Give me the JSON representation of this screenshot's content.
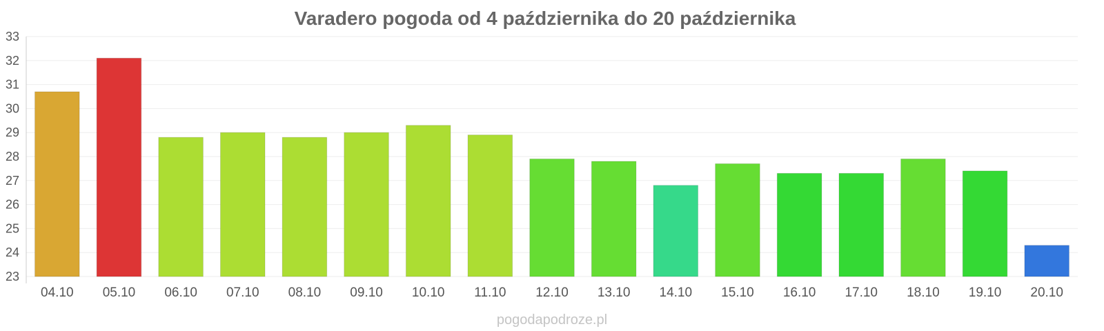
{
  "chart_data": {
    "type": "bar",
    "title": "Varadero pogoda od 4 października do 20 października",
    "xlabel": "",
    "ylabel": "",
    "ylim": [
      23,
      33
    ],
    "yticks": [
      "23",
      "24",
      "25",
      "26",
      "27",
      "28",
      "29",
      "30",
      "31",
      "32",
      "33"
    ],
    "grid": true,
    "categories": [
      "04.10",
      "05.10",
      "06.10",
      "07.10",
      "08.10",
      "09.10",
      "10.10",
      "11.10",
      "12.10",
      "13.10",
      "14.10",
      "15.10",
      "16.10",
      "17.10",
      "18.10",
      "19.10",
      "20.10"
    ],
    "values": [
      30.7,
      32.1,
      28.8,
      29.0,
      28.8,
      29.0,
      29.3,
      28.9,
      27.9,
      27.8,
      26.8,
      27.7,
      27.3,
      27.3,
      27.9,
      27.4,
      24.3
    ],
    "colors": [
      "#d9a733",
      "#dd3535",
      "#acdd33",
      "#acdd33",
      "#acdd33",
      "#acdd33",
      "#acdd33",
      "#acdd33",
      "#66dd33",
      "#66dd33",
      "#36d98a",
      "#66dd33",
      "#34d934",
      "#34d934",
      "#66dd33",
      "#34d934",
      "#3377dd"
    ]
  },
  "watermark": "pogodapodroze.pl"
}
